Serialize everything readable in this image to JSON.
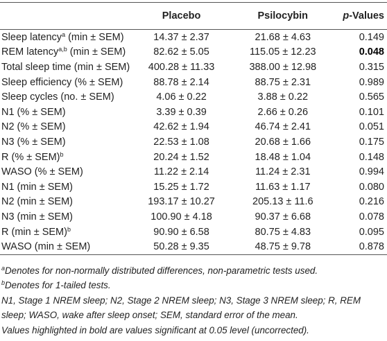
{
  "table": {
    "header": {
      "placebo": "Placebo",
      "psilocybin": "Psilocybin",
      "p_italic": "p",
      "p_rest": "-Values"
    },
    "rows": [
      {
        "label": "Sleep latency",
        "sup": "a",
        "unit": "(min ± SEM)",
        "placebo": "14.37 ± 2.37",
        "psilocybin": "21.68 ± 4.63",
        "p": "0.149"
      },
      {
        "label": "REM latency",
        "sup": "a,b",
        "unit": "(min ± SEM)",
        "placebo": "82.62 ± 5.05",
        "psilocybin": "115.05 ± 12.23",
        "p": "0.048",
        "bold": true
      },
      {
        "label": "Total sleep time",
        "unit": "(min ± SEM)",
        "placebo": "400.28 ± 11.33",
        "psilocybin": "388.00 ± 12.98",
        "p": "0.315"
      },
      {
        "label": "Sleep efficiency",
        "unit": "(% ± SEM)",
        "placebo": "88.78 ± 2.14",
        "psilocybin": "88.75 ± 2.31",
        "p": "0.989"
      },
      {
        "label": "Sleep cycles",
        "unit": "(no. ± SEM)",
        "placebo": "4.06 ± 0.22",
        "psilocybin": "3.88 ± 0.22",
        "p": "0.565"
      },
      {
        "label": "N1",
        "unit": "(% ± SEM)",
        "placebo": "3.39 ± 0.39",
        "psilocybin": "2.66 ± 0.26",
        "p": "0.101"
      },
      {
        "label": "N2",
        "unit": "(% ± SEM)",
        "placebo": "42.62 ± 1.94",
        "psilocybin": "46.74 ± 2.41",
        "p": "0.051"
      },
      {
        "label": "N3",
        "unit": "(% ± SEM)",
        "placebo": "22.53 ± 1.08",
        "psilocybin": "20.68 ± 1.66",
        "p": "0.175"
      },
      {
        "label": "R",
        "unit": "(% ± SEM)",
        "sup_after": "b",
        "placebo": "20.24 ± 1.52",
        "psilocybin": "18.48 ± 1.04",
        "p": "0.148"
      },
      {
        "label": "WASO",
        "unit": "(% ± SEM)",
        "placebo": "11.22 ± 2.14",
        "psilocybin": "11.24 ± 2.31",
        "p": "0.994"
      },
      {
        "label": "N1",
        "unit": "(min ± SEM)",
        "placebo": "15.25 ± 1.72",
        "psilocybin": "11.63 ± 1.17",
        "p": "0.080"
      },
      {
        "label": "N2",
        "unit": "(min ± SEM)",
        "placebo": "193.17 ± 10.27",
        "psilocybin": "205.13 ± 11.6",
        "p": "0.216"
      },
      {
        "label": "N3",
        "unit": "(min ± SEM)",
        "placebo": "100.90 ± 4.18",
        "psilocybin": "90.37 ± 6.68",
        "p": "0.078"
      },
      {
        "label": "R",
        "unit": "(min ± SEM)",
        "sup_after": "b",
        "placebo": "90.90 ± 6.58",
        "psilocybin": "80.75 ± 4.83",
        "p": "0.095"
      },
      {
        "label": "WASO",
        "unit": "(min ± SEM)",
        "placebo": "50.28 ± 9.35",
        "psilocybin": "48.75 ± 9.78",
        "p": "0.878"
      }
    ]
  },
  "notes": [
    {
      "sup": "a",
      "text": "Denotes for non-normally distributed differences, non-parametric tests used."
    },
    {
      "sup": "b",
      "text": "Denotes for 1-tailed tests."
    },
    {
      "text": "N1, Stage 1 NREM sleep; N2, Stage 2 NREM sleep; N3, Stage 3 NREM sleep; R, REM sleep; WASO, wake after sleep onset; SEM, standard error of the mean."
    },
    {
      "text": "Values highlighted in bold are values significant at 0.05 level (uncorrected)."
    }
  ]
}
